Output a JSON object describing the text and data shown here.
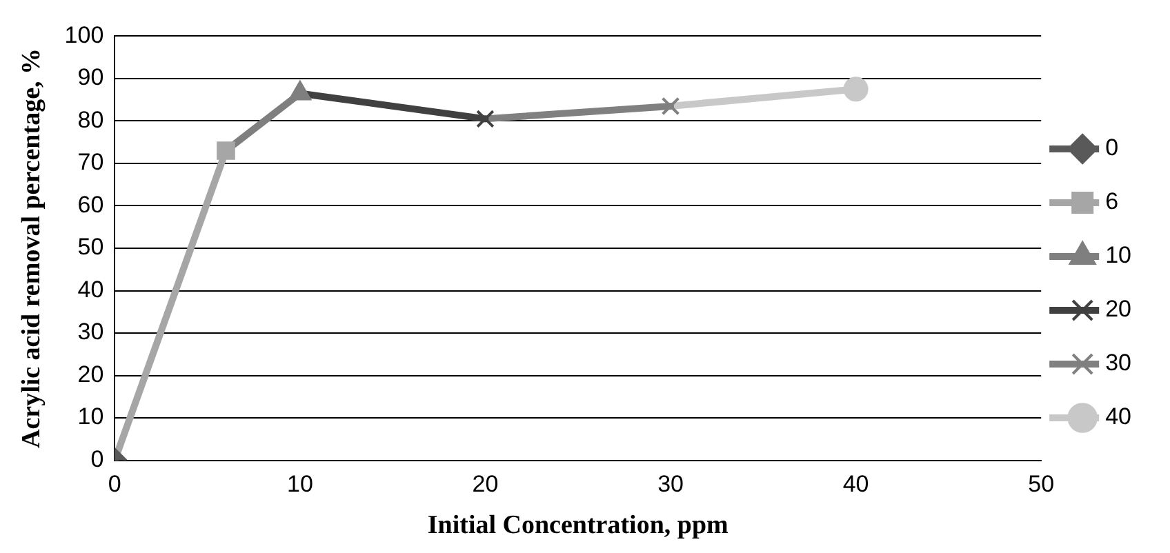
{
  "chart_data": {
    "type": "line",
    "xlabel": "Initial Concentration, ppm",
    "ylabel": "Acrylic acid removal percentage, %",
    "xlim": [
      0,
      50
    ],
    "xticks": [
      0,
      10,
      20,
      30,
      40,
      50
    ],
    "ylim": [
      0,
      100
    ],
    "yticks": [
      0,
      10,
      20,
      30,
      40,
      50,
      60,
      70,
      80,
      90,
      100
    ],
    "grid": "y",
    "legend": "right",
    "line_style": "solid",
    "series": [
      {
        "name": "0",
        "color": "#595959",
        "marker": "diamond",
        "x": [
          0
        ],
        "values": [
          0
        ]
      },
      {
        "name": "6",
        "color": "#a6a6a6",
        "marker": "square",
        "x": [
          0,
          6
        ],
        "values": [
          0,
          73
        ]
      },
      {
        "name": "10",
        "color": "#7f7f7f",
        "marker": "triangle",
        "x": [
          6,
          10
        ],
        "values": [
          73,
          86.5
        ]
      },
      {
        "name": "20",
        "color": "#404040",
        "marker": "cross",
        "x": [
          10,
          20
        ],
        "values": [
          86.5,
          80.5
        ]
      },
      {
        "name": "30",
        "color": "#808080",
        "marker": "cross",
        "x": [
          20,
          30
        ],
        "values": [
          80.5,
          83.5
        ]
      },
      {
        "name": "40",
        "color": "#c8c8c8",
        "marker": "circle",
        "x": [
          30,
          40
        ],
        "values": [
          83.5,
          87.5
        ]
      }
    ]
  }
}
